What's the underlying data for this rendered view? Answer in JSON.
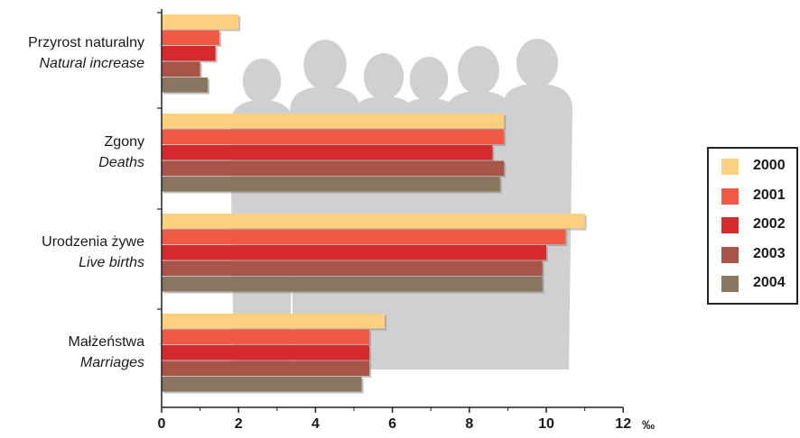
{
  "chart_data": {
    "type": "bar",
    "orientation": "horizontal",
    "categories": [
      {
        "label": "Przyrost naturalny",
        "label_en": "Natural increase"
      },
      {
        "label": "Zgony",
        "label_en": "Deaths"
      },
      {
        "label": "Urodzenia żywe",
        "label_en": "Live births"
      },
      {
        "label": "Małżeństwa",
        "label_en": "Marriages"
      }
    ],
    "series": [
      {
        "name": "2000",
        "color": "#fdd07f",
        "values": [
          2.0,
          8.9,
          11.0,
          5.8
        ]
      },
      {
        "name": "2001",
        "color": "#f05a45",
        "values": [
          1.5,
          8.9,
          10.5,
          5.4
        ]
      },
      {
        "name": "2002",
        "color": "#d42a2e",
        "values": [
          1.4,
          8.6,
          10.0,
          5.4
        ]
      },
      {
        "name": "2003",
        "color": "#a85548",
        "values": [
          1.0,
          8.9,
          9.9,
          5.4
        ]
      },
      {
        "name": "2004",
        "color": "#8a7560",
        "values": [
          1.2,
          8.8,
          9.9,
          5.2
        ]
      }
    ],
    "xticks": [
      "0",
      "2",
      "4",
      "6",
      "8",
      "10",
      "12"
    ],
    "xlim": [
      0,
      12
    ],
    "xunit": "‰",
    "legend_position": "right",
    "grid": false,
    "background_illustration": "people-silhouettes"
  }
}
